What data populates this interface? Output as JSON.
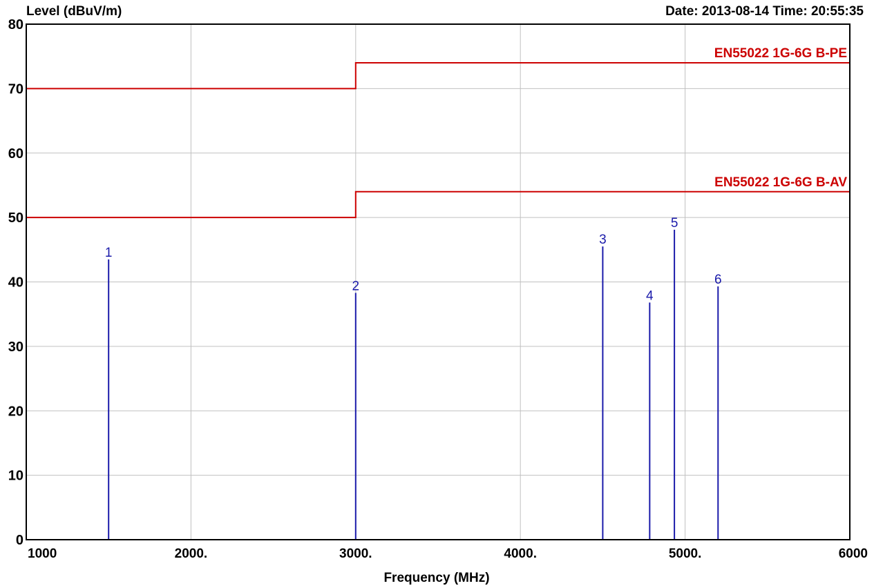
{
  "header": {
    "date_time": "Date: 2013-08-14  Time: 20:55:35"
  },
  "chart_data": {
    "type": "line",
    "ylabel": "Level (dBuV/m)",
    "xlabel": "Frequency (MHz)",
    "xlim": [
      1000,
      6000
    ],
    "ylim": [
      0,
      80
    ],
    "grid": true,
    "x_ticks": [
      {
        "value": 1000,
        "label": "1000"
      },
      {
        "value": 2000,
        "label": "2000."
      },
      {
        "value": 3000,
        "label": "3000."
      },
      {
        "value": 4000,
        "label": "4000."
      },
      {
        "value": 5000,
        "label": "5000."
      },
      {
        "value": 6000,
        "label": "6000"
      }
    ],
    "y_ticks": [
      {
        "value": 0,
        "label": "0"
      },
      {
        "value": 10,
        "label": "10"
      },
      {
        "value": 20,
        "label": "20"
      },
      {
        "value": 30,
        "label": "30"
      },
      {
        "value": 40,
        "label": "40"
      },
      {
        "value": 50,
        "label": "50"
      },
      {
        "value": 60,
        "label": "60"
      },
      {
        "value": 70,
        "label": "70"
      },
      {
        "value": 80,
        "label": "80"
      }
    ],
    "limit_lines": [
      {
        "name": "EN55022 1G-6G B-PE",
        "color": "#cc0000",
        "points": [
          [
            1000,
            70
          ],
          [
            3000,
            70
          ],
          [
            3000,
            74
          ],
          [
            6000,
            74
          ]
        ]
      },
      {
        "name": "EN55022 1G-6G B-AV",
        "color": "#cc0000",
        "points": [
          [
            1000,
            50
          ],
          [
            3000,
            50
          ],
          [
            3000,
            54
          ],
          [
            6000,
            54
          ]
        ]
      }
    ],
    "markers": [
      {
        "label": "1",
        "x": 1500,
        "y": 43.5
      },
      {
        "label": "2",
        "x": 3000,
        "y": 38.3
      },
      {
        "label": "3",
        "x": 4500,
        "y": 45.5
      },
      {
        "label": "4",
        "x": 4785,
        "y": 36.8
      },
      {
        "label": "5",
        "x": 4935,
        "y": 48.1
      },
      {
        "label": "6",
        "x": 5200,
        "y": 39.3
      }
    ],
    "marker_color": "#1a1aaa"
  }
}
